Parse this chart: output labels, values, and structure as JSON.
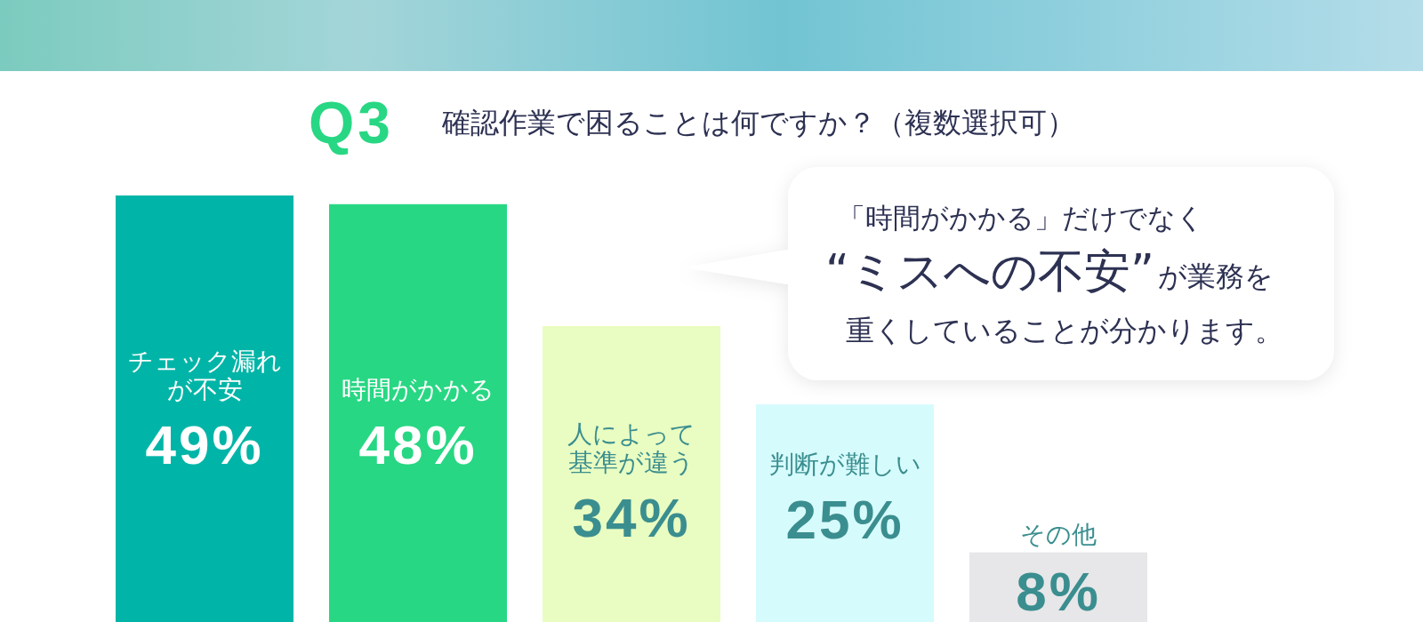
{
  "chart_data": {
    "type": "bar",
    "title": "Q3",
    "subtitle": "確認作業で困ることは何ですか？（複数選択可）",
    "categories": [
      "チェック漏れが不安",
      "時間がかかる",
      "人によって基準が違う",
      "判断が難しい",
      "その他"
    ],
    "values": [
      49,
      48,
      34,
      25,
      8
    ],
    "colors": [
      "#00b5a7",
      "#28d783",
      "#e9fcc1",
      "#d6fbfc",
      "#e7e6e8"
    ],
    "value_labels": [
      "49%",
      "48%",
      "34%",
      "25%",
      "8%"
    ],
    "annotations": [
      "「時間がかかる」だけでなく",
      "“ミスへの不安”",
      "が業務を",
      "重くしていることが分かります。"
    ]
  }
}
